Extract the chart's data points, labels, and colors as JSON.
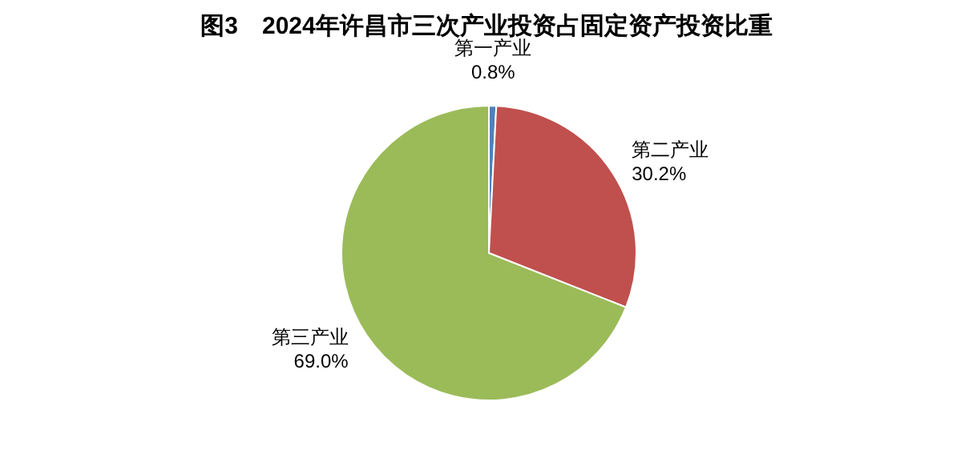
{
  "chart_data": {
    "type": "pie",
    "title": "图3　2024年许昌市三次产业投资占固定资产投资比重",
    "categories": [
      "第一产业",
      "第二产业",
      "第三产业"
    ],
    "values": [
      0.8,
      30.2,
      69.0
    ],
    "colors": [
      "#4f81bd",
      "#c0504d",
      "#9bbb59"
    ],
    "value_labels": [
      "0.8%",
      "30.2%",
      "69.0%"
    ]
  }
}
